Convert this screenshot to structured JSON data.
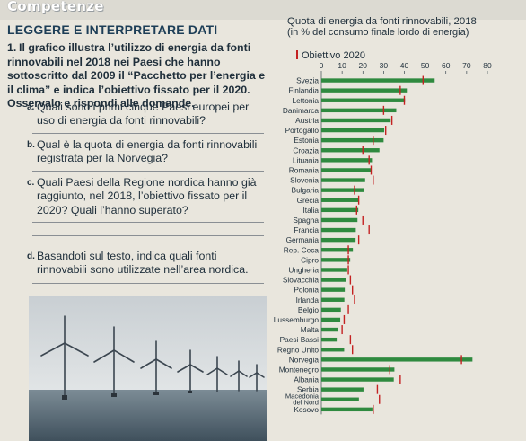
{
  "page": {
    "section_title": "Competenze",
    "label": "LEGGERE E INTERPRETARE DATI"
  },
  "exercise": {
    "number": "1.",
    "intro": "Il grafico illustra l’utilizzo di energia da fonti rinnovabili nel 2018 nei Paesi che hanno sottoscritto dal 2009 il “Pacchetto per l’energia e il clima” e indica l’obiettivo fissato per il 2020. Osservalo e rispondi alle domande.",
    "tasks": [
      {
        "letter": "a.",
        "text": "Quali sono i primi cinque Paesi europei per uso di energia da fonti rinnovabili?"
      },
      {
        "letter": "b.",
        "text": "Qual è la quota di energia da fonti rinnovabili registrata per la Norvegia?"
      },
      {
        "letter": "c.",
        "text": "Quali Paesi della Regione nordica hanno già raggiunto, nel 2018, l’obiettivo fissato per il 2020? Quali l’hanno superato?"
      },
      {
        "letter": "d.",
        "text": "Basandoti sul testo, indica quali fonti rinnovabili sono utilizzate nell’area nordica."
      }
    ]
  },
  "chart_data": {
    "type": "bar",
    "title": "Quota di energia da fonti rinnovabili, 2018",
    "subtitle": "(in % del consumo finale lordo di energia)",
    "legend": [
      {
        "name": "Obiettivo 2020",
        "color": "#c42222"
      }
    ],
    "xlim": [
      0,
      80
    ],
    "xticks": [
      0,
      10,
      20,
      30,
      40,
      50,
      60,
      70,
      80
    ],
    "categories": [
      "Svezia",
      "Finlandia",
      "Lettonia",
      "Danimarca",
      "Austria",
      "Portogallo",
      "Estonia",
      "Croazia",
      "Lituania",
      "Romania",
      "Slovenia",
      "Bulgaria",
      "Grecia",
      "Italia",
      "Spagna",
      "Francia",
      "Germania",
      "Rep. Ceca",
      "Cipro",
      "Ungheria",
      "Slovacchia",
      "Polonia",
      "Irlanda",
      "Belgio",
      "Lussemburgo",
      "Malta",
      "Paesi Bassi",
      "Regno Unito",
      "Norvegia",
      "Montenegro",
      "Albania",
      "Serbia",
      "Macedonia del Nord",
      "Kosovo"
    ],
    "category_lines": [
      [
        "Svezia"
      ],
      [
        "Finlandia"
      ],
      [
        "Lettonia"
      ],
      [
        "Danimarca"
      ],
      [
        "Austria"
      ],
      [
        "Portogallo"
      ],
      [
        "Estonia"
      ],
      [
        "Croazia"
      ],
      [
        "Lituania"
      ],
      [
        "Romania"
      ],
      [
        "Slovenia"
      ],
      [
        "Bulgaria"
      ],
      [
        "Grecia"
      ],
      [
        "Italia"
      ],
      [
        "Spagna"
      ],
      [
        "Francia"
      ],
      [
        "Germania"
      ],
      [
        "Rep. Ceca"
      ],
      [
        "Cipro"
      ],
      [
        "Ungheria"
      ],
      [
        "Slovacchia"
      ],
      [
        "Polonia"
      ],
      [
        "Irlanda"
      ],
      [
        "Belgio"
      ],
      [
        "Lussemburgo"
      ],
      [
        "Malta"
      ],
      [
        "Paesi Bassi"
      ],
      [
        "Regno Unito"
      ],
      [
        "Norvegia"
      ],
      [
        "Montenegro"
      ],
      [
        "Albania"
      ],
      [
        "Serbia"
      ],
      [
        "Macedonia",
        "del Nord"
      ],
      [
        "Kosovo"
      ]
    ],
    "series": [
      {
        "values": [
          54.6,
          41.2,
          40.3,
          36.1,
          33.4,
          30.3,
          30.0,
          28.0,
          24.4,
          23.9,
          21.1,
          20.5,
          18.0,
          17.8,
          17.4,
          16.6,
          16.5,
          15.2,
          13.9,
          12.5,
          11.9,
          11.3,
          11.1,
          9.4,
          9.1,
          8.0,
          7.4,
          11.0,
          72.8,
          35.2,
          34.9,
          20.3,
          18.1,
          24.6
        ]
      },
      {
        "name": "Obiettivo 2020",
        "values": [
          49,
          38,
          40,
          30,
          34,
          31,
          25,
          20,
          23,
          24,
          25,
          16,
          18,
          17,
          20,
          23,
          18,
          13,
          13,
          13,
          14,
          15,
          16,
          13,
          11,
          10,
          14,
          15,
          67.5,
          33,
          38,
          27,
          28,
          25
        ]
      }
    ],
    "colors": {
      "bar": "#2f8a3f",
      "target": "#c42222",
      "background": "#e9e6dd",
      "photo_sky": "#dfe3e5",
      "photo_sea": "#5d6f7b"
    }
  }
}
